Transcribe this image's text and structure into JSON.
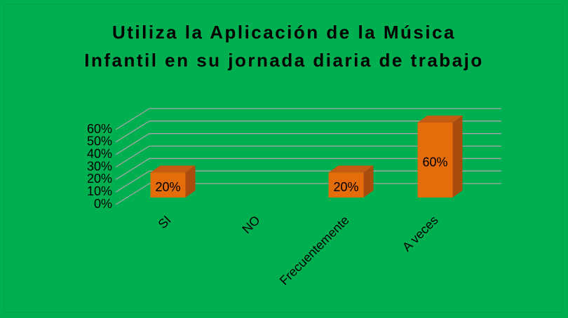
{
  "chart_data": {
    "type": "bar3d",
    "title": [
      "Utiliza la Aplicación de la Música",
      "Infantil en su jornada diaria de trabajo"
    ],
    "categories": [
      "SI",
      "NO",
      "Frecuentemente",
      "A veces"
    ],
    "values": [
      20,
      0,
      20,
      60
    ],
    "value_labels": [
      "20%",
      null,
      "20%",
      "60%"
    ],
    "color": "#e46c0a",
    "ylim": [
      0,
      60
    ],
    "yticks": [
      {
        "value": 0,
        "label": "0%"
      },
      {
        "value": 10,
        "label": "10%"
      },
      {
        "value": 20,
        "label": "20%"
      },
      {
        "value": 30,
        "label": "30%"
      },
      {
        "value": 40,
        "label": "40%"
      },
      {
        "value": 50,
        "label": "50%"
      },
      {
        "value": 60,
        "label": "60%"
      }
    ],
    "grid": true
  }
}
